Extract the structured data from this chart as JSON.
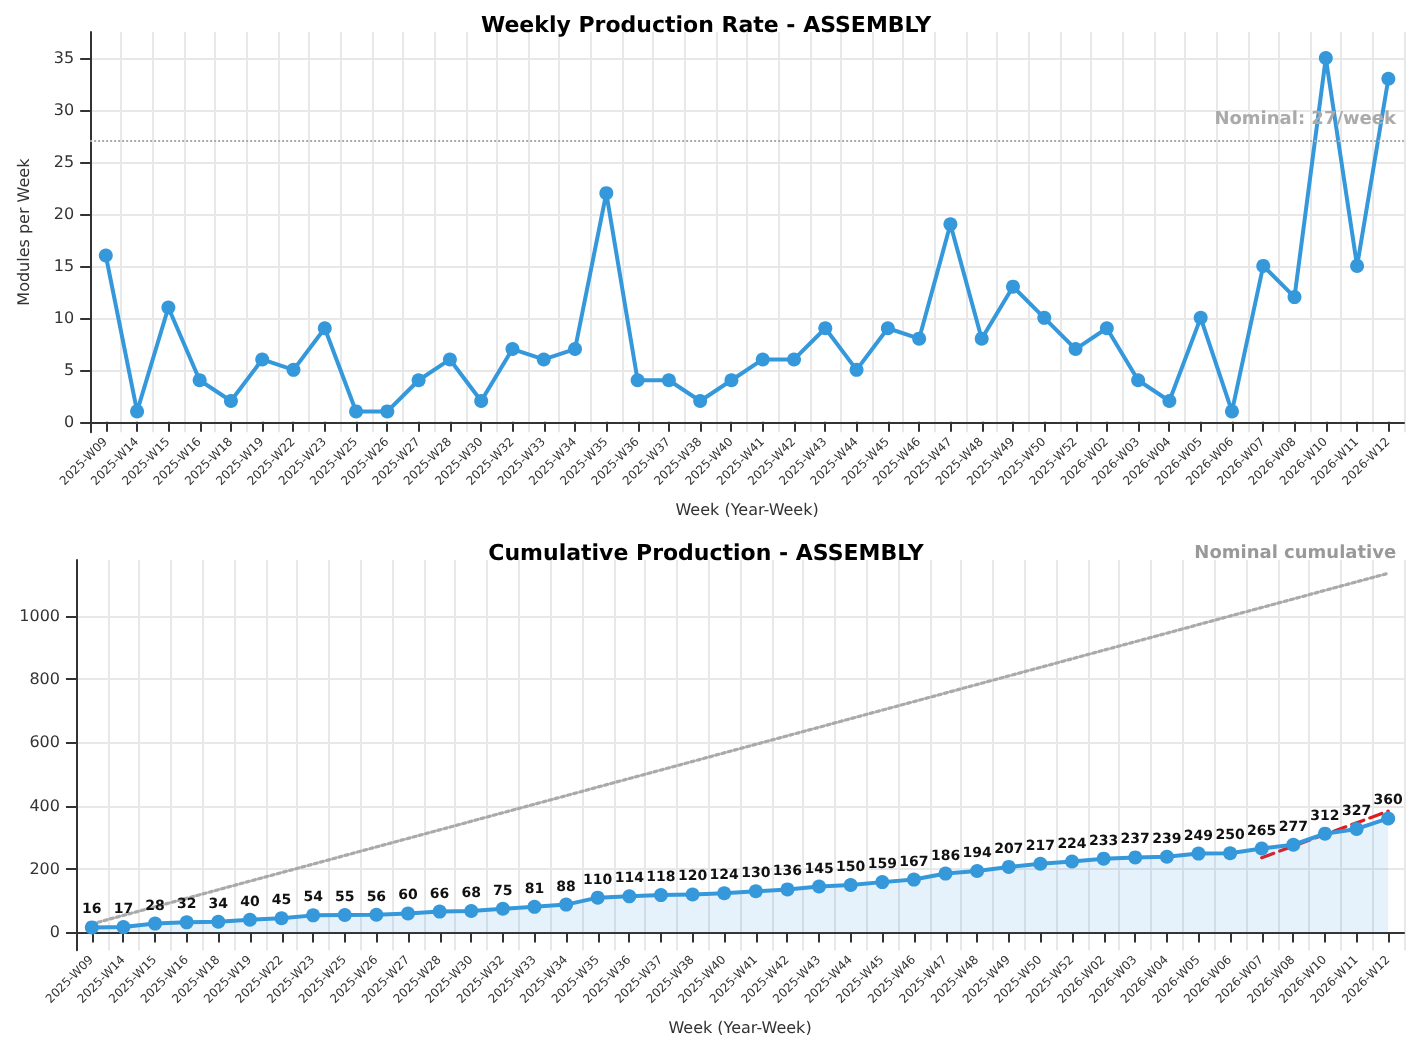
{
  "chart_data": [
    {
      "type": "line",
      "title": "Weekly Production Rate - ASSEMBLY",
      "xlabel": "Week (Year-Week)",
      "ylabel": "Modules per Week",
      "categories": [
        "2025-W09",
        "2025-W14",
        "2025-W15",
        "2025-W16",
        "2025-W18",
        "2025-W19",
        "2025-W22",
        "2025-W23",
        "2025-W25",
        "2025-W26",
        "2025-W27",
        "2025-W28",
        "2025-W30",
        "2025-W32",
        "2025-W33",
        "2025-W34",
        "2025-W35",
        "2025-W36",
        "2025-W37",
        "2025-W38",
        "2025-W40",
        "2025-W41",
        "2025-W42",
        "2025-W43",
        "2025-W44",
        "2025-W45",
        "2025-W46",
        "2025-W47",
        "2025-W48",
        "2025-W49",
        "2025-W50",
        "2025-W52",
        "2026-W02",
        "2026-W03",
        "2026-W04",
        "2026-W05",
        "2026-W06",
        "2026-W07",
        "2026-W08",
        "2026-W10",
        "2026-W11",
        "2026-W12"
      ],
      "series": [
        {
          "color": "#3498db",
          "values": [
            16,
            1,
            11,
            4,
            2,
            6,
            5,
            9,
            1,
            1,
            4,
            6,
            2,
            7,
            6,
            7,
            22,
            4,
            4,
            2,
            4,
            6,
            6,
            9,
            5,
            9,
            8,
            19,
            8,
            13,
            10,
            7,
            9,
            4,
            2,
            10,
            1,
            15,
            12,
            35,
            15,
            33
          ]
        }
      ],
      "ylim": [
        -1,
        37.5
      ],
      "yticks": [
        0,
        5,
        10,
        15,
        20,
        25,
        30,
        35
      ],
      "grid": true,
      "marker": "circle",
      "ref_lines": [
        {
          "axis": "y",
          "value": 27,
          "label": "Nominal: 27/week",
          "color": "#aaaaaa",
          "line_style": "dotted"
        }
      ]
    },
    {
      "type": "area",
      "title": "Cumulative Production - ASSEMBLY",
      "xlabel": "Week (Year-Week)",
      "categories": [
        "2025-W09",
        "2025-W14",
        "2025-W15",
        "2025-W16",
        "2025-W18",
        "2025-W19",
        "2025-W22",
        "2025-W23",
        "2025-W25",
        "2025-W26",
        "2025-W27",
        "2025-W28",
        "2025-W30",
        "2025-W32",
        "2025-W33",
        "2025-W34",
        "2025-W35",
        "2025-W36",
        "2025-W37",
        "2025-W38",
        "2025-W40",
        "2025-W41",
        "2025-W42",
        "2025-W43",
        "2025-W44",
        "2025-W45",
        "2025-W46",
        "2025-W47",
        "2025-W48",
        "2025-W49",
        "2025-W50",
        "2025-W52",
        "2026-W02",
        "2026-W03",
        "2026-W04",
        "2026-W05",
        "2026-W06",
        "2026-W07",
        "2026-W08",
        "2026-W10",
        "2026-W11",
        "2026-W12"
      ],
      "series": [
        {
          "color": "#3498db",
          "marker": "circle",
          "data_labels": true,
          "values": [
            16,
            17,
            28,
            32,
            34,
            40,
            45,
            54,
            55,
            56,
            60,
            66,
            68,
            75,
            81,
            88,
            110,
            114,
            118,
            120,
            124,
            130,
            136,
            145,
            150,
            159,
            167,
            186,
            194,
            207,
            217,
            224,
            233,
            237,
            239,
            249,
            250,
            265,
            277,
            312,
            327,
            360
          ]
        },
        {
          "type": "line",
          "name": "Nominal cumulative",
          "color": "#aaaaaa",
          "marker": "none",
          "line_style": "dotted",
          "x": [
            "2025-W09",
            "2026-W12"
          ],
          "values": [
            27,
            1134
          ]
        },
        {
          "type": "line",
          "color": "#e31a1c",
          "marker": "none",
          "line_style": "dashed",
          "x": [
            "2026-W07",
            "2026-W12"
          ],
          "values": [
            236,
            383
          ]
        }
      ],
      "ylim": [
        -56,
        1176
      ],
      "yticks": [
        0,
        200,
        400,
        600,
        800,
        1000
      ],
      "grid": true
    }
  ]
}
